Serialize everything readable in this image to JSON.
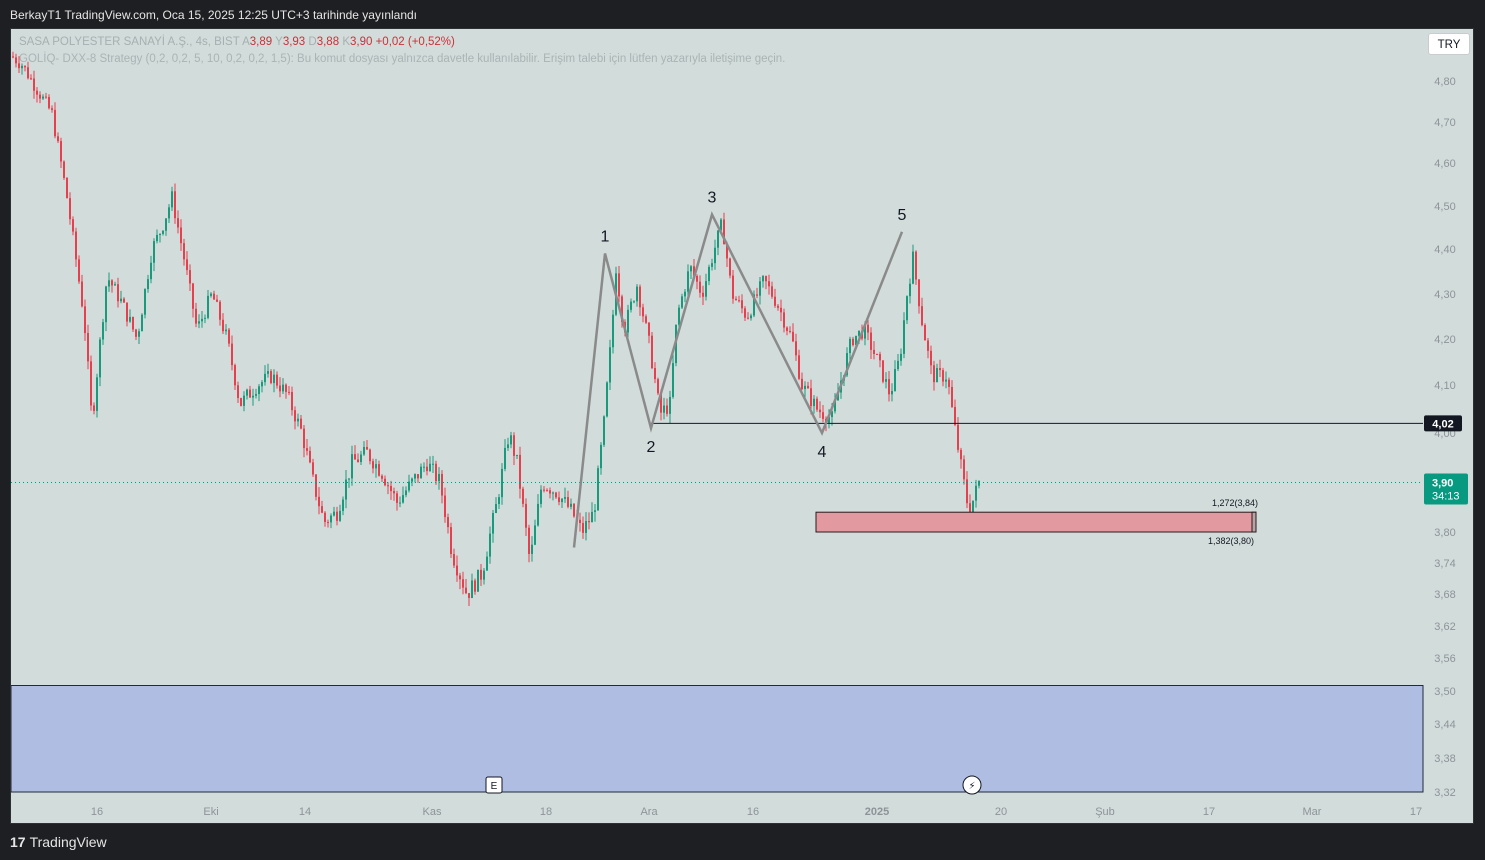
{
  "header": {
    "published": "BerkayT1 TradingView.com, Oca 15, 2025 12:25 UTC+3 tarihinde yayınlandı"
  },
  "legend": {
    "symbol": "SASA POLYESTER SANAYİ A.Ş., 4s, BIST",
    "open_label": "A",
    "open": "3,89",
    "high_label": "Y",
    "high": "3,93",
    "low_label": "D",
    "low": "3,88",
    "close_label": "K",
    "close": "3,90",
    "change": "+0,02 (+0,52%)",
    "indicator": "GOLİQ- DXX-8 Strategy (0,2, 0,2, 5, 10, 0,2, 0,2, 1,5): Bu komut dosyası yalnızca davetle kullanılabilir. Erişim talebi için lütfen yazarıyla iletişime geçin."
  },
  "currency_button": "TRY",
  "footer": {
    "brand": "TradingView"
  },
  "colors": {
    "background": "#d2dcdb",
    "up_candle": "#1a9a7c",
    "down_candle": "#e5404e",
    "wave_line": "#8a8a8a",
    "zone_red": "#e29aa0",
    "zone_blue": "#aebde1",
    "price_tag": "#089981"
  },
  "chart_data": {
    "type": "candlestick",
    "symbol": "SASA",
    "interval": "4s",
    "y_ticks": [
      "4,80",
      "4,70",
      "4,60",
      "4,50",
      "4,40",
      "4,30",
      "4,20",
      "4,10",
      "4,00",
      "3,80",
      "3,74",
      "3,68",
      "3,62",
      "3,56",
      "3,50",
      "3,44",
      "3,38",
      "3,32"
    ],
    "x_ticks": [
      "16",
      "Eki",
      "14",
      "Kas",
      "18",
      "Ara",
      "16",
      "2025",
      "20",
      "Şub",
      "17",
      "Mar",
      "17"
    ],
    "elliott_wave": [
      {
        "label": "1",
        "price": 4.39
      },
      {
        "label": "2",
        "price": 4.01
      },
      {
        "label": "3",
        "price": 4.48
      },
      {
        "label": "4",
        "price": 4.0
      },
      {
        "label": "5",
        "price": 4.44
      }
    ],
    "wave_start_price": 3.77,
    "horizontal_line": {
      "price": 4.02,
      "label": "4,02"
    },
    "current_price": {
      "price": 3.9,
      "label": "3,90",
      "countdown": "34:13"
    },
    "fib_zone": {
      "top_label": "1,272(3,84)",
      "bottom_label": "1,382(3,80)",
      "top": 3.84,
      "bottom": 3.8
    },
    "support_zone": {
      "top": 3.51,
      "bottom": 3.32
    },
    "markers": {
      "earnings": "E",
      "dividend": "⚡"
    },
    "anchors": [
      [
        0,
        4.86
      ],
      [
        10,
        4.84
      ],
      [
        40,
        4.72
      ],
      [
        55,
        4.52
      ],
      [
        72,
        4.25
      ],
      [
        80,
        4.02
      ],
      [
        95,
        4.34
      ],
      [
        110,
        4.28
      ],
      [
        125,
        4.2
      ],
      [
        140,
        4.4
      ],
      [
        150,
        4.45
      ],
      [
        160,
        4.52
      ],
      [
        172,
        4.38
      ],
      [
        185,
        4.22
      ],
      [
        200,
        4.3
      ],
      [
        215,
        4.2
      ],
      [
        228,
        4.06
      ],
      [
        245,
        4.1
      ],
      [
        260,
        4.12
      ],
      [
        275,
        4.08
      ],
      [
        290,
        4.0
      ],
      [
        300,
        3.91
      ],
      [
        312,
        3.82
      ],
      [
        325,
        3.84
      ],
      [
        340,
        3.94
      ],
      [
        355,
        3.96
      ],
      [
        370,
        3.92
      ],
      [
        385,
        3.86
      ],
      [
        400,
        3.9
      ],
      [
        415,
        3.94
      ],
      [
        428,
        3.9
      ],
      [
        440,
        3.76
      ],
      [
        455,
        3.68
      ],
      [
        470,
        3.72
      ],
      [
        485,
        3.86
      ],
      [
        497,
        4.0
      ],
      [
        505,
        3.94
      ],
      [
        518,
        3.74
      ],
      [
        530,
        3.9
      ],
      [
        545,
        3.88
      ],
      [
        560,
        3.84
      ],
      [
        570,
        3.8
      ],
      [
        582,
        3.84
      ],
      [
        592,
        4.02
      ],
      [
        600,
        4.22
      ],
      [
        604,
        4.36
      ],
      [
        612,
        4.22
      ],
      [
        625,
        4.32
      ],
      [
        638,
        4.18
      ],
      [
        648,
        4.04
      ],
      [
        658,
        4.06
      ],
      [
        665,
        4.25
      ],
      [
        678,
        4.36
      ],
      [
        690,
        4.3
      ],
      [
        700,
        4.38
      ],
      [
        710,
        4.46
      ],
      [
        720,
        4.3
      ],
      [
        735,
        4.25
      ],
      [
        752,
        4.33
      ],
      [
        765,
        4.28
      ],
      [
        780,
        4.2
      ],
      [
        790,
        4.1
      ],
      [
        805,
        4.05
      ],
      [
        820,
        4.03
      ],
      [
        830,
        4.12
      ],
      [
        840,
        4.2
      ],
      [
        852,
        4.22
      ],
      [
        866,
        4.15
      ],
      [
        878,
        4.08
      ],
      [
        888,
        4.16
      ],
      [
        895,
        4.3
      ],
      [
        901,
        4.38
      ],
      [
        910,
        4.24
      ],
      [
        920,
        4.12
      ],
      [
        935,
        4.12
      ],
      [
        942,
        4.02
      ],
      [
        950,
        3.92
      ],
      [
        957,
        3.84
      ],
      [
        962,
        3.87
      ],
      [
        967,
        3.9
      ]
    ]
  }
}
